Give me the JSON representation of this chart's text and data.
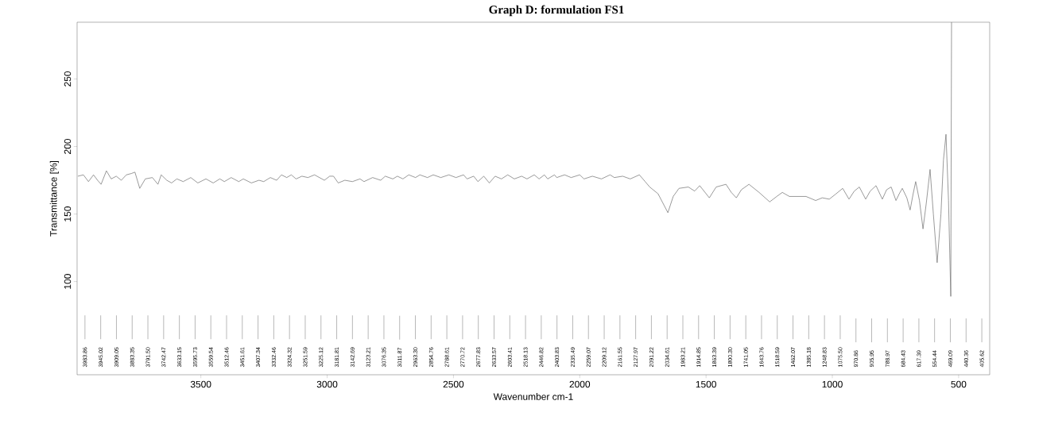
{
  "chart_data": {
    "type": "line",
    "title": "Graph D: formulation FS1",
    "xlabel": "Wavenumber cm-1",
    "ylabel": "Transmittance [%]",
    "color": "#6e6e6e",
    "xlim": [
      3990,
      377
    ],
    "ylim": [
      31,
      292
    ],
    "xticks": [
      3500,
      3000,
      2500,
      2000,
      1500,
      1000,
      500
    ],
    "yticks": [
      100,
      150,
      200,
      250
    ],
    "x": [
      3987,
      3965,
      3945,
      3925,
      3909,
      3895,
      3874,
      3855,
      3835,
      3815,
      3795,
      3775,
      3761,
      3742,
      3720,
      3692,
      3670,
      3657,
      3635,
      3616,
      3595,
      3570,
      3540,
      3512,
      3480,
      3451,
      3425,
      3407,
      3380,
      3350,
      3332,
      3300,
      3270,
      3251,
      3225,
      3200,
      3181,
      3160,
      3142,
      3123,
      3100,
      3076,
      3050,
      3011,
      2990,
      2975,
      2956,
      2930,
      2900,
      2870,
      2854,
      2820,
      2788,
      2770,
      2740,
      2722,
      2700,
      2677,
      2650,
      2633,
      2603,
      2580,
      2550,
      2518,
      2490,
      2460,
      2446,
      2420,
      2403,
      2380,
      2358,
      2335,
      2310,
      2285,
      2259,
      2230,
      2209,
      2180,
      2161,
      2140,
      2127,
      2100,
      2091,
      2060,
      2034,
      2000,
      1983,
      1950,
      1914,
      1880,
      1863,
      1830,
      1800,
      1764,
      1741,
      1723,
      1690,
      1651,
      1630,
      1607,
      1570,
      1545,
      1525,
      1487,
      1460,
      1421,
      1400,
      1380,
      1360,
      1330,
      1290,
      1248,
      1220,
      1198,
      1170,
      1140,
      1104,
      1066,
      1040,
      1012,
      985,
      959,
      934,
      913,
      893,
      868,
      850,
      827,
      802,
      785,
      767,
      748,
      735,
      723,
      705,
      692,
      680,
      670,
      655,
      641,
      628,
      613,
      600,
      585,
      570,
      560,
      550,
      540,
      531,
      528
    ],
    "values": [
      178,
      179,
      174,
      179,
      175,
      172,
      182,
      176,
      178,
      175,
      179,
      180,
      181,
      169,
      176,
      177,
      172,
      179,
      175,
      173,
      176,
      174,
      177,
      173,
      176,
      173,
      176,
      174,
      177,
      174,
      176,
      173,
      175,
      174,
      177,
      175,
      179,
      177,
      179,
      176,
      178,
      177,
      179,
      175,
      178,
      178,
      173,
      175,
      174,
      176,
      174,
      177,
      175,
      178,
      176,
      178,
      176,
      179,
      177,
      179,
      177,
      179,
      177,
      179,
      177,
      179,
      176,
      178,
      174,
      178,
      173,
      178,
      176,
      179,
      176,
      178,
      176,
      179,
      176,
      179,
      176,
      179,
      177,
      179,
      177,
      179,
      176,
      178,
      176,
      179,
      177,
      178,
      176,
      179,
      174,
      170,
      165,
      151,
      163,
      169,
      170,
      167,
      171,
      162,
      170,
      172,
      166,
      162,
      168,
      172,
      166,
      159,
      163,
      166,
      163,
      163,
      163,
      160,
      162,
      161,
      165,
      169,
      161,
      167,
      170,
      161,
      167,
      171,
      161,
      168,
      170,
      160,
      165,
      169,
      162,
      153,
      165,
      174,
      160,
      139,
      158,
      183,
      150,
      114,
      150,
      190,
      209,
      160,
      89,
      292
    ],
    "annotations": [
      "3983.86",
      "3945.02",
      "3909.05",
      "3883.35",
      "3791.50",
      "3742.47",
      "3633.15",
      "3595.73",
      "3559.54",
      "3512.46",
      "3451.61",
      "3407.34",
      "3332.46",
      "3324.32",
      "3251.59",
      "3225.12",
      "3181.81",
      "3142.69",
      "3123.21",
      "3076.35",
      "3011.87",
      "2963.30",
      "2854.76",
      "2788.61",
      "2770.72",
      "2677.83",
      "2633.57",
      "2603.41",
      "2518.13",
      "2446.82",
      "2403.83",
      "2335.49",
      "2259.07",
      "2209.12",
      "2161.55",
      "2127.97",
      "2091.22",
      "2034.61",
      "1983.21",
      "1914.85",
      "1863.39",
      "1800.30",
      "1741.05",
      "1643.76",
      "1518.59",
      "1462.07",
      "1385.18",
      "1248.83",
      "1075.50",
      "970.86",
      "905.95",
      "788.97",
      "684.43",
      "617.39",
      "554.44",
      "469.09",
      "440.36",
      "405.62"
    ]
  }
}
